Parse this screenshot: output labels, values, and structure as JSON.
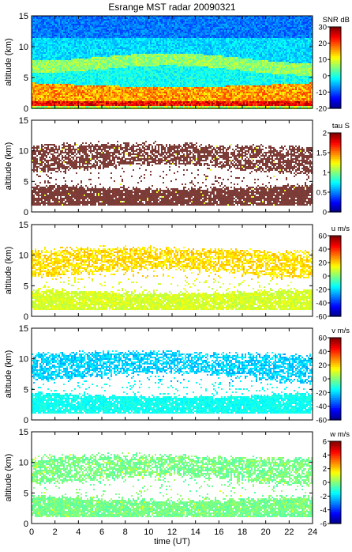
{
  "title": "Esrange MST radar 20090321",
  "x_axis": {
    "label": "time (UT)",
    "ticks": [
      "0",
      "2",
      "4",
      "6",
      "8",
      "10",
      "12",
      "14",
      "16",
      "18",
      "20",
      "22",
      "24"
    ],
    "range": [
      0,
      24
    ]
  },
  "colormap": "jet",
  "chart_data": [
    {
      "type": "heatmap",
      "ylabel": "altitude (km)",
      "yticks": [
        "0",
        "5",
        "10",
        "15"
      ],
      "ylim": [
        0,
        15
      ],
      "xlim": [
        0,
        24
      ],
      "colorbar": {
        "label": "SNR dB",
        "range": [
          -20,
          30
        ],
        "ticks": [
          "-20",
          "-10",
          "0",
          "10",
          "20",
          "30"
        ]
      },
      "description_values": "full coverage 0-15 km; 25-30 dB below 1 km, 15-25 dB between 1-4 km, 5-15 dB sloping layer near 4-9 km, -5 to 5 dB above 10 km"
    },
    {
      "type": "heatmap",
      "ylabel": "altitude (km)",
      "yticks": [
        "0",
        "5",
        "10",
        "15"
      ],
      "ylim": [
        0,
        15
      ],
      "xlim": [
        0,
        24
      ],
      "colorbar": {
        "label": "tau S",
        "range": [
          0,
          2
        ],
        "ticks": [
          "0",
          "0.5",
          "1",
          "1.5",
          "2"
        ]
      }
    },
    {
      "type": "heatmap",
      "ylabel": "altitude (km)",
      "yticks": [
        "0",
        "5",
        "10",
        "15"
      ],
      "ylim": [
        0,
        15
      ],
      "xlim": [
        0,
        24
      ],
      "colorbar": {
        "label": "u m/s",
        "range": [
          -60,
          60
        ],
        "ticks": [
          "-60",
          "-40",
          "-20",
          "0",
          "20",
          "40",
          "60"
        ]
      }
    },
    {
      "type": "heatmap",
      "ylabel": "altitude (km)",
      "yticks": [
        "0",
        "5",
        "10",
        "15"
      ],
      "ylim": [
        0,
        15
      ],
      "xlim": [
        0,
        24
      ],
      "colorbar": {
        "label": "v m/s",
        "range": [
          -60,
          60
        ],
        "ticks": [
          "-60",
          "-40",
          "-20",
          "0",
          "20",
          "40",
          "60"
        ]
      }
    },
    {
      "type": "heatmap",
      "ylabel": "altitude (km)",
      "yticks": [
        "0",
        "5",
        "10",
        "15"
      ],
      "ylim": [
        0,
        15
      ],
      "xlim": [
        0,
        24
      ],
      "colorbar": {
        "label": "w m/s",
        "range": [
          -6,
          6
        ],
        "ticks": [
          "-6",
          "-4",
          "-2",
          "0",
          "2",
          "4",
          "6"
        ]
      }
    }
  ]
}
